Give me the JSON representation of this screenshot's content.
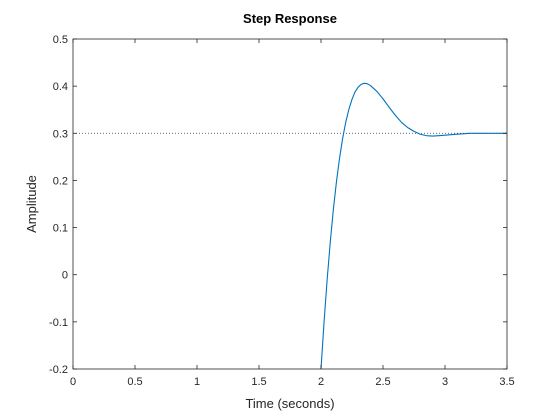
{
  "chart_data": {
    "type": "line",
    "title": "Step Response",
    "xlabel": "Time (seconds)",
    "ylabel": "Amplitude",
    "xlim": [
      0,
      3.5
    ],
    "ylim": [
      -0.2,
      0.5
    ],
    "xticks": [
      0,
      0.5,
      1,
      1.5,
      2,
      2.5,
      3,
      3.5
    ],
    "xtick_labels": [
      "0",
      "0.5",
      "1",
      "1.5",
      "2",
      "2.5",
      "3",
      "3.5"
    ],
    "yticks": [
      -0.2,
      -0.1,
      0,
      0.1,
      0.2,
      0.3,
      0.4,
      0.5
    ],
    "ytick_labels": [
      "-0.2",
      "-0.1",
      "0",
      "0.1",
      "0.2",
      "0.3",
      "0.4",
      "0.5"
    ],
    "grid": false,
    "series": [
      {
        "color": "#0072BD",
        "x": [
          2.0,
          2.025,
          2.05,
          2.075,
          2.1,
          2.125,
          2.15,
          2.175,
          2.2,
          2.225,
          2.25,
          2.275,
          2.3,
          2.325,
          2.35,
          2.375,
          2.4,
          2.45,
          2.5,
          2.55,
          2.6,
          2.65,
          2.7,
          2.75,
          2.8,
          2.85,
          2.9,
          2.95,
          3.0,
          3.1,
          3.2,
          3.3,
          3.4,
          3.5
        ],
        "y": [
          -0.2,
          -0.099,
          -0.009,
          0.07,
          0.139,
          0.198,
          0.248,
          0.29,
          0.324,
          0.351,
          0.372,
          0.388,
          0.398,
          0.404,
          0.406,
          0.405,
          0.401,
          0.389,
          0.373,
          0.355,
          0.338,
          0.323,
          0.312,
          0.304,
          0.298,
          0.295,
          0.294,
          0.295,
          0.296,
          0.298,
          0.3,
          0.3,
          0.3,
          0.3
        ]
      }
    ],
    "reference_line": {
      "y": 0.3,
      "style": "dotted",
      "color": "#333333"
    }
  }
}
